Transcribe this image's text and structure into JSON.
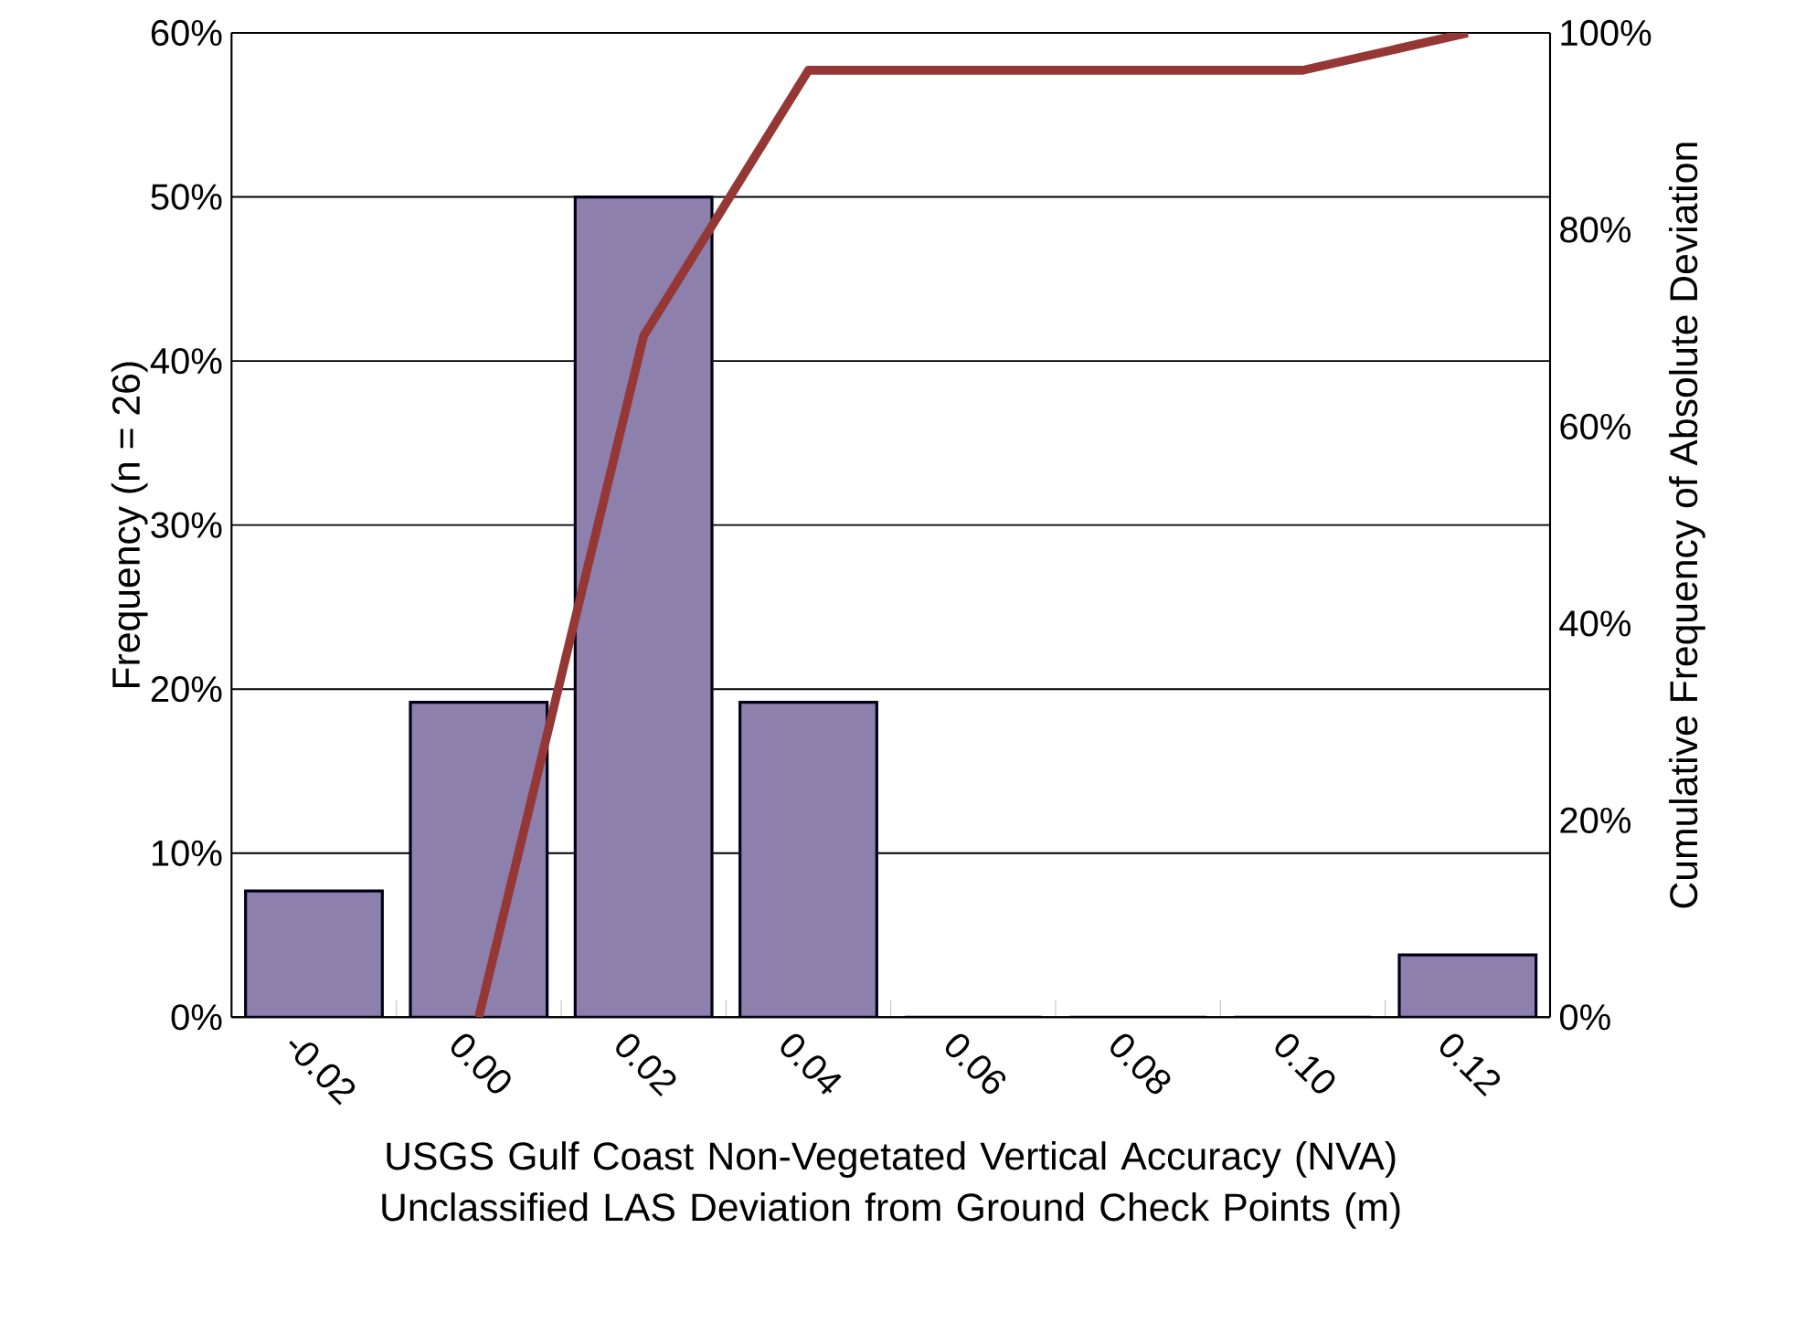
{
  "chart_data": {
    "type": "bar",
    "xlabel": "USGS Gulf Coast Non-Vegetated Vertical Accuracy (NVA) Unclassified LAS Deviation from Ground Check Points (m)",
    "ylabel": "Frequency (n = 26)",
    "y2label": "Cumulative Frequency of Absolute Deviation",
    "categories": [
      "-0.02",
      "0.00",
      "0.02",
      "0.04",
      "0.06",
      "0.08",
      "0.10",
      "0.12"
    ],
    "series": [
      {
        "color": "#8e80ad",
        "values": [
          7.7,
          19.2,
          50,
          19.2,
          0,
          0,
          0,
          3.8
        ]
      },
      {
        "type": "line",
        "axis": "y2",
        "color": "#953735",
        "values": [
          null,
          0,
          69.2,
          96.2,
          96.2,
          96.2,
          96.2,
          100
        ]
      }
    ],
    "ylim": [
      0,
      60
    ],
    "yticks": [
      {
        "value": 0,
        "label": "0%"
      },
      {
        "value": 10,
        "label": "10%"
      },
      {
        "value": 20,
        "label": "20%"
      },
      {
        "value": 30,
        "label": "30%"
      },
      {
        "value": 40,
        "label": "40%"
      },
      {
        "value": 50,
        "label": "50%"
      },
      {
        "value": 60,
        "label": "60%"
      }
    ],
    "y2lim": [
      0,
      100
    ],
    "y2ticks": [
      {
        "value": 0,
        "label": "0%"
      },
      {
        "value": 20,
        "label": "20%"
      },
      {
        "value": 40,
        "label": "40%"
      },
      {
        "value": 60,
        "label": "60%"
      },
      {
        "value": 80,
        "label": "80%"
      },
      {
        "value": 100,
        "label": "100%"
      }
    ],
    "grid": "y",
    "line_style": "solid",
    "marker": "none"
  }
}
